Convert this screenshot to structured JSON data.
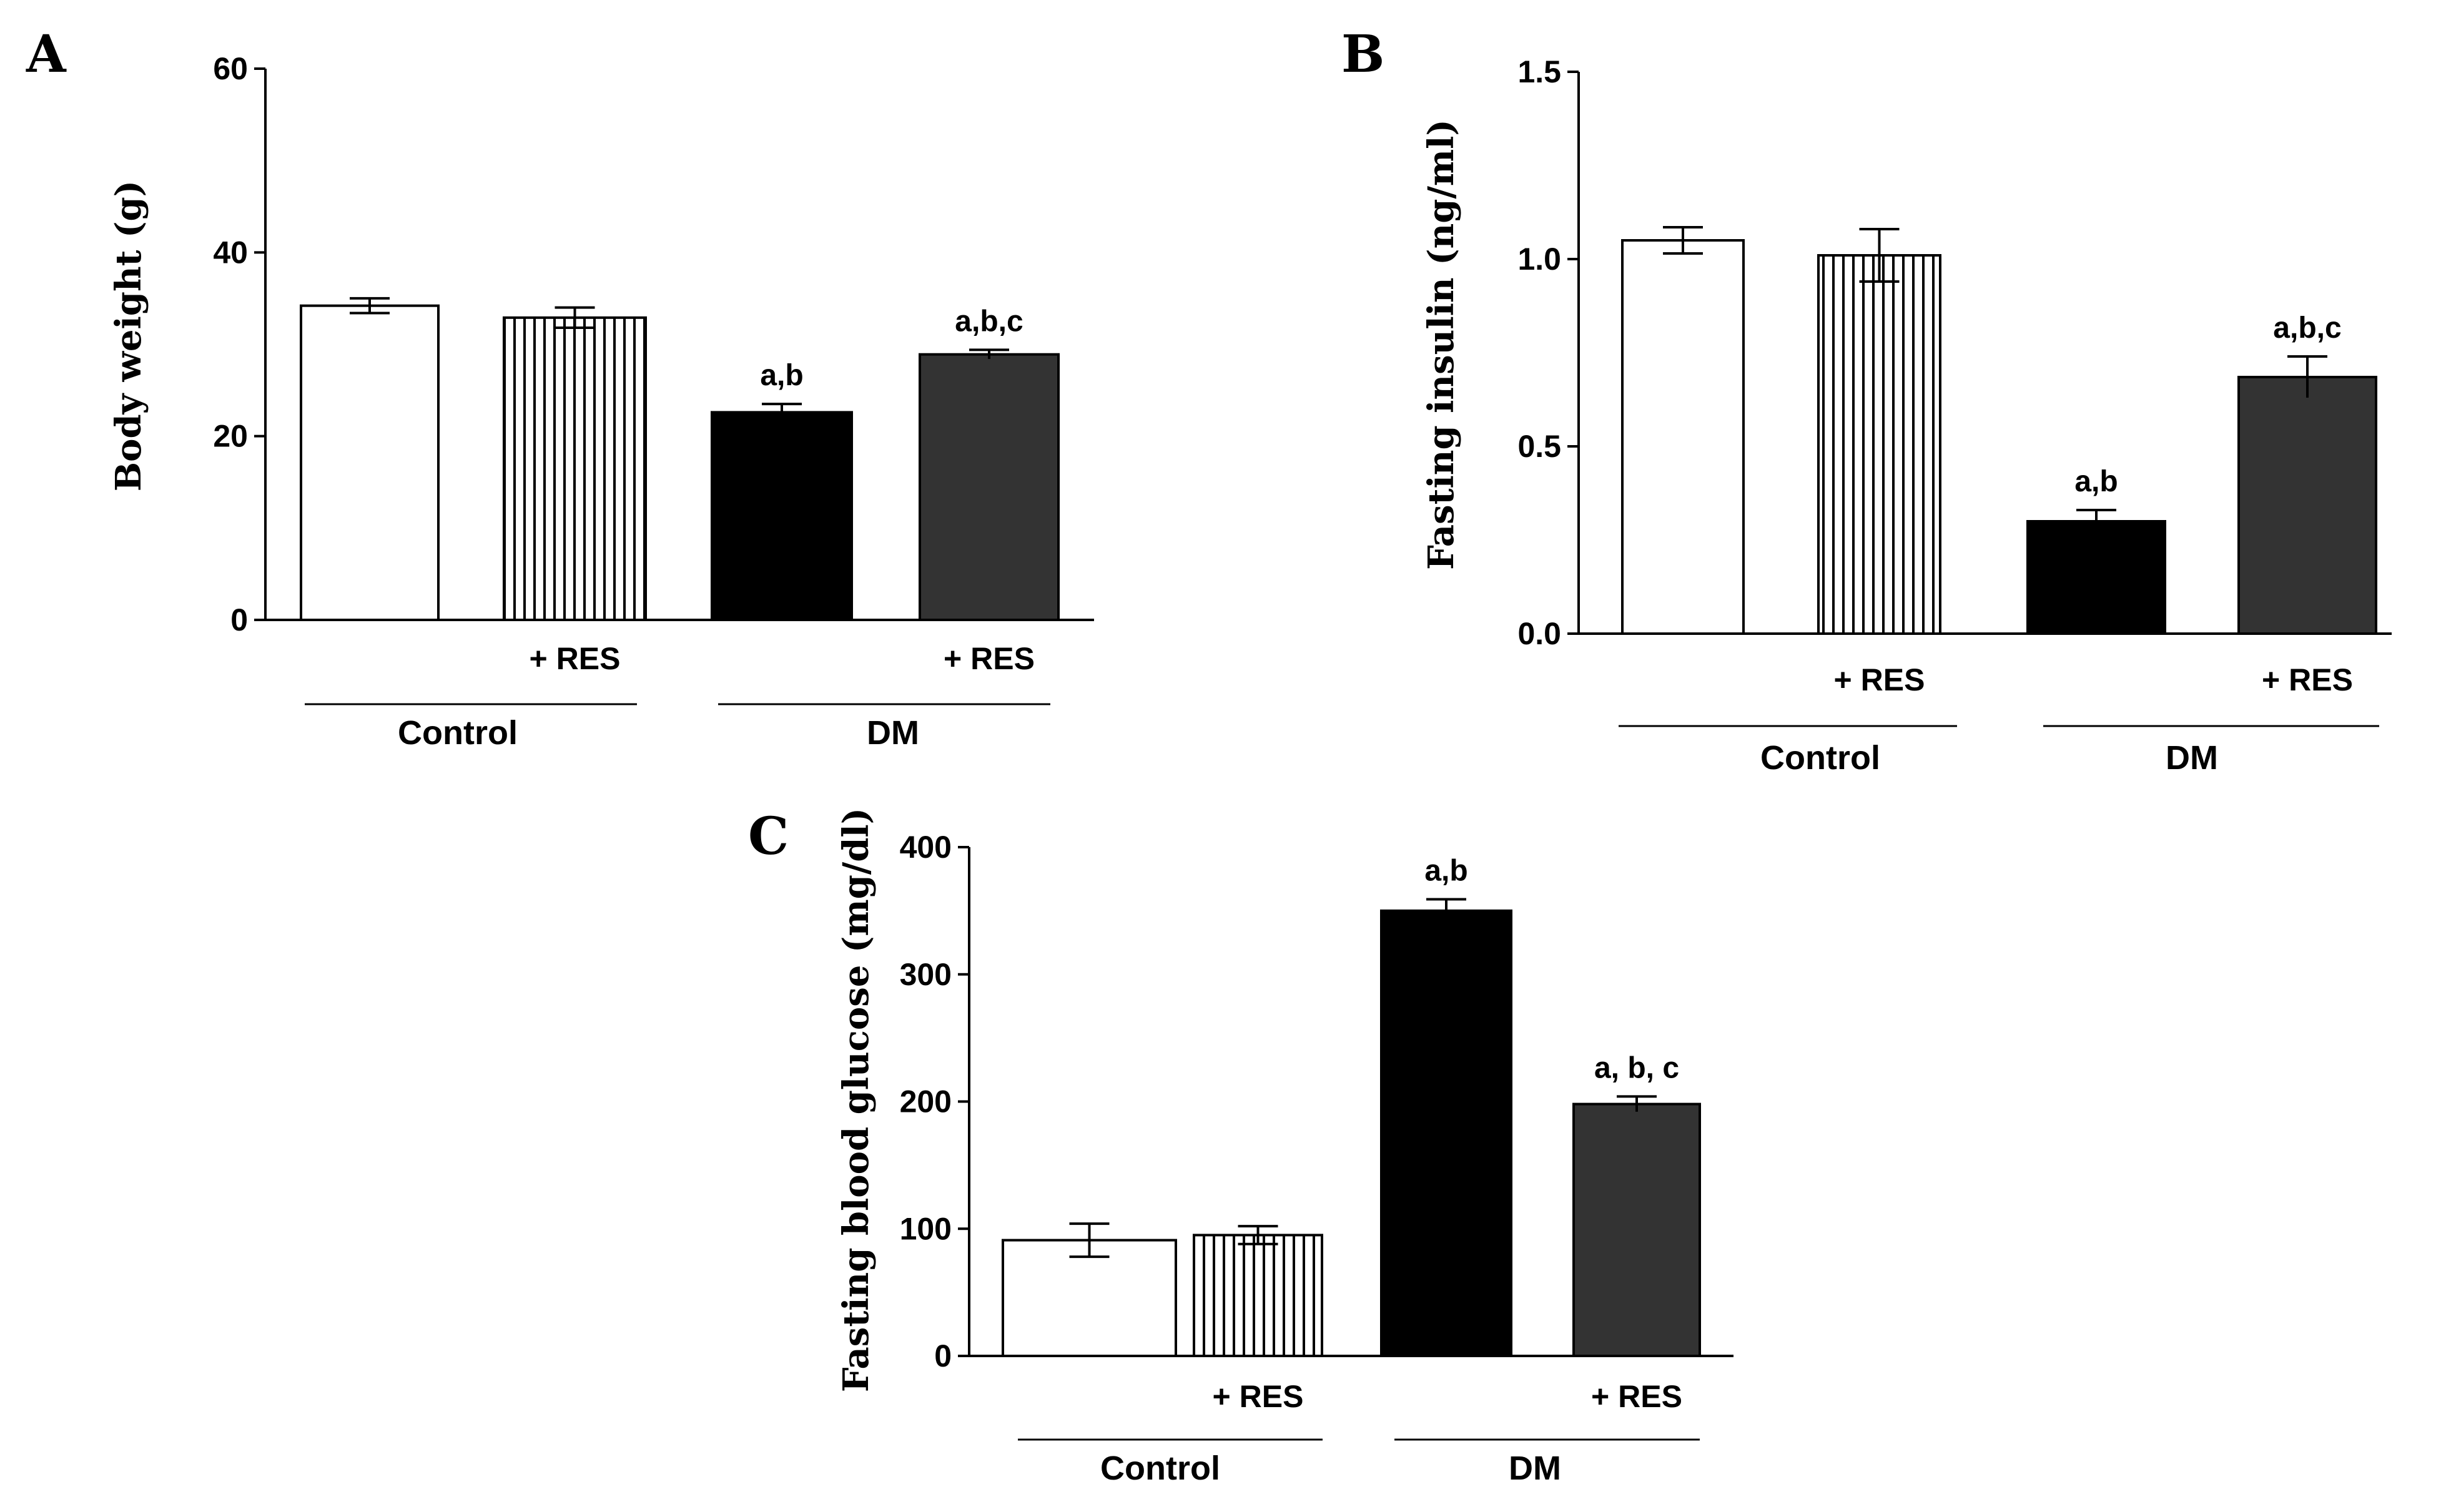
{
  "chart_data": [
    {
      "panel": "A",
      "type": "bar",
      "ylabel": "Body weight (g)",
      "ylim": [
        0,
        60
      ],
      "yticks": [
        "0",
        "20",
        "40",
        "60"
      ],
      "condition_labels": [
        "",
        "+ RES",
        "",
        "+ RES"
      ],
      "groups": [
        "Control",
        "DM"
      ],
      "bars": [
        {
          "name": "Control",
          "value": 34.2,
          "error": 0.8,
          "fill": "white",
          "sig": ""
        },
        {
          "name": "Control + RES",
          "value": 32.9,
          "error": 1.1,
          "fill": "striped",
          "sig": ""
        },
        {
          "name": "DM",
          "value": 22.6,
          "error": 0.9,
          "fill": "black",
          "sig": "a,b"
        },
        {
          "name": "DM + RES",
          "value": 28.9,
          "error": 0.5,
          "fill": "dark",
          "sig": "a,b,c"
        }
      ]
    },
    {
      "panel": "B",
      "type": "bar",
      "ylabel": "Fasting insulin (ng/ml)",
      "ylim": [
        0,
        1.5
      ],
      "yticks": [
        "0.0",
        "0.5",
        "1.0",
        "1.5"
      ],
      "condition_labels": [
        "",
        "+ RES",
        "",
        "+ RES"
      ],
      "groups": [
        "Control",
        "DM"
      ],
      "bars": [
        {
          "name": "Control",
          "value": 1.05,
          "error": 0.035,
          "fill": "white",
          "sig": ""
        },
        {
          "name": "Control + RES",
          "value": 1.01,
          "error": 0.07,
          "fill": "striped",
          "sig": ""
        },
        {
          "name": "DM",
          "value": 0.3,
          "error": 0.03,
          "fill": "black",
          "sig": "a,b"
        },
        {
          "name": "DM + RES",
          "value": 0.685,
          "error": 0.055,
          "fill": "dark",
          "sig": "a,b,c"
        }
      ]
    },
    {
      "panel": "C",
      "type": "bar",
      "ylabel": "Fasting blood glucose (mg/dl)",
      "ylim": [
        0,
        400
      ],
      "yticks": [
        "0",
        "100",
        "200",
        "300",
        "400"
      ],
      "condition_labels": [
        "",
        "+ RES",
        "",
        "+ RES"
      ],
      "groups": [
        "Control",
        "DM"
      ],
      "bars": [
        {
          "name": "Control",
          "value": 91,
          "error": 13,
          "fill": "white",
          "sig": ""
        },
        {
          "name": "Control + RES",
          "value": 95,
          "error": 7,
          "fill": "striped",
          "sig": ""
        },
        {
          "name": "DM",
          "value": 350,
          "error": 9,
          "fill": "black",
          "sig": "a,b"
        },
        {
          "name": "DM + RES",
          "value": 198,
          "error": 6,
          "fill": "dark",
          "sig": "a, b, c"
        }
      ]
    }
  ],
  "colors": {
    "black_bar": "#000000",
    "dark_bar": "#333333",
    "white_bar": "#ffffff",
    "stroke": "#000000"
  }
}
